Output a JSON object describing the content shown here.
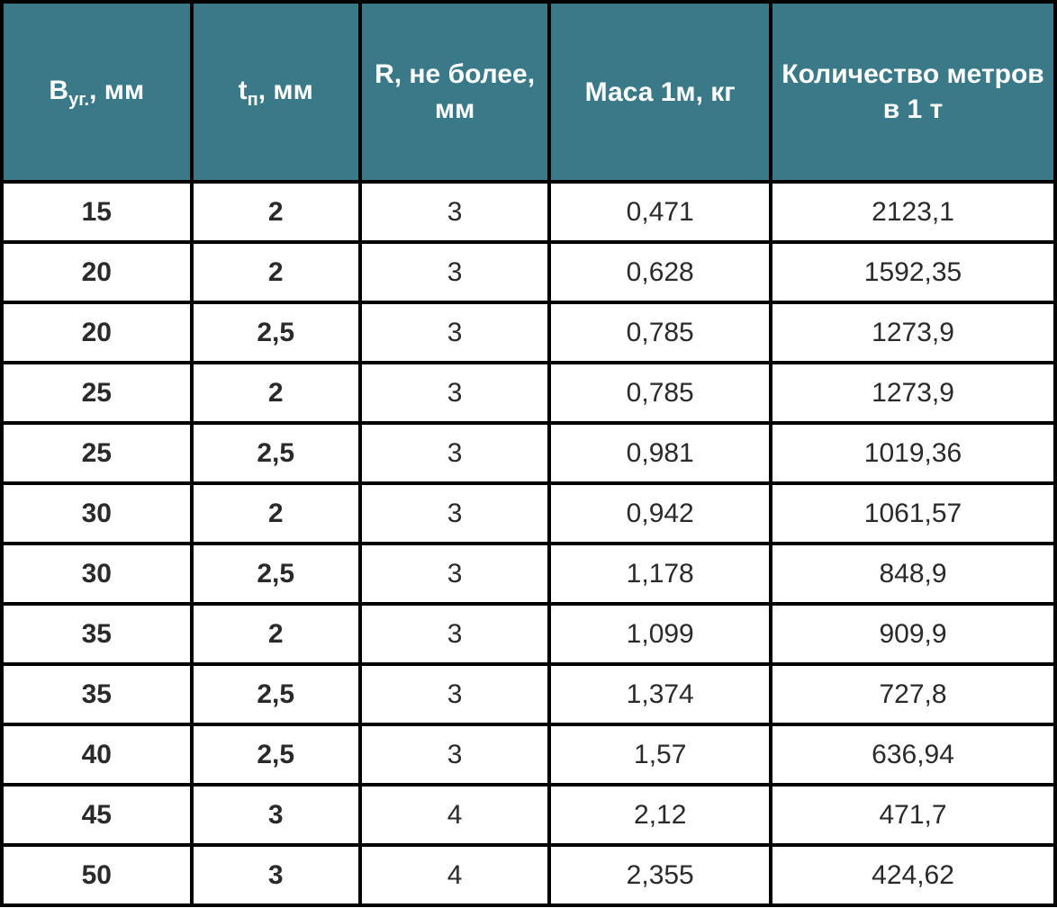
{
  "table": {
    "type": "table",
    "header_background": "#3a7a88",
    "header_text_color": "#ffffff",
    "body_background": "#ffffff",
    "body_text_color": "#2a2a2a",
    "border_color": "#000000",
    "border_width": 4,
    "header_fontsize": 30,
    "body_fontsize": 30,
    "columns": [
      {
        "label_html": "B<span class=\"sub\">уг.</span>, мм",
        "bold_cells": true,
        "width_pct": 18
      },
      {
        "label_html": "t<span class=\"sub\">п</span>, мм",
        "bold_cells": true,
        "width_pct": 16
      },
      {
        "label_html": "R, не более, мм",
        "bold_cells": false,
        "width_pct": 18
      },
      {
        "label_html": "Маса 1м, кг",
        "bold_cells": false,
        "width_pct": 21
      },
      {
        "label_html": "Количество метров в 1 т",
        "bold_cells": false,
        "width_pct": 27
      }
    ],
    "rows": [
      [
        "15",
        "2",
        "3",
        "0,471",
        "2123,1"
      ],
      [
        "20",
        "2",
        "3",
        "0,628",
        "1592,35"
      ],
      [
        "20",
        "2,5",
        "3",
        "0,785",
        "1273,9"
      ],
      [
        "25",
        "2",
        "3",
        "0,785",
        "1273,9"
      ],
      [
        "25",
        "2,5",
        "3",
        "0,981",
        "1019,36"
      ],
      [
        "30",
        "2",
        "3",
        "0,942",
        "1061,57"
      ],
      [
        "30",
        "2,5",
        "3",
        "1,178",
        "848,9"
      ],
      [
        "35",
        "2",
        "3",
        "1,099",
        "909,9"
      ],
      [
        "35",
        "2,5",
        "3",
        "1,374",
        "727,8"
      ],
      [
        "40",
        "2,5",
        "3",
        "1,57",
        "636,94"
      ],
      [
        "45",
        "3",
        "4",
        "2,12",
        "471,7"
      ],
      [
        "50",
        "3",
        "4",
        "2,355",
        "424,62"
      ]
    ]
  }
}
